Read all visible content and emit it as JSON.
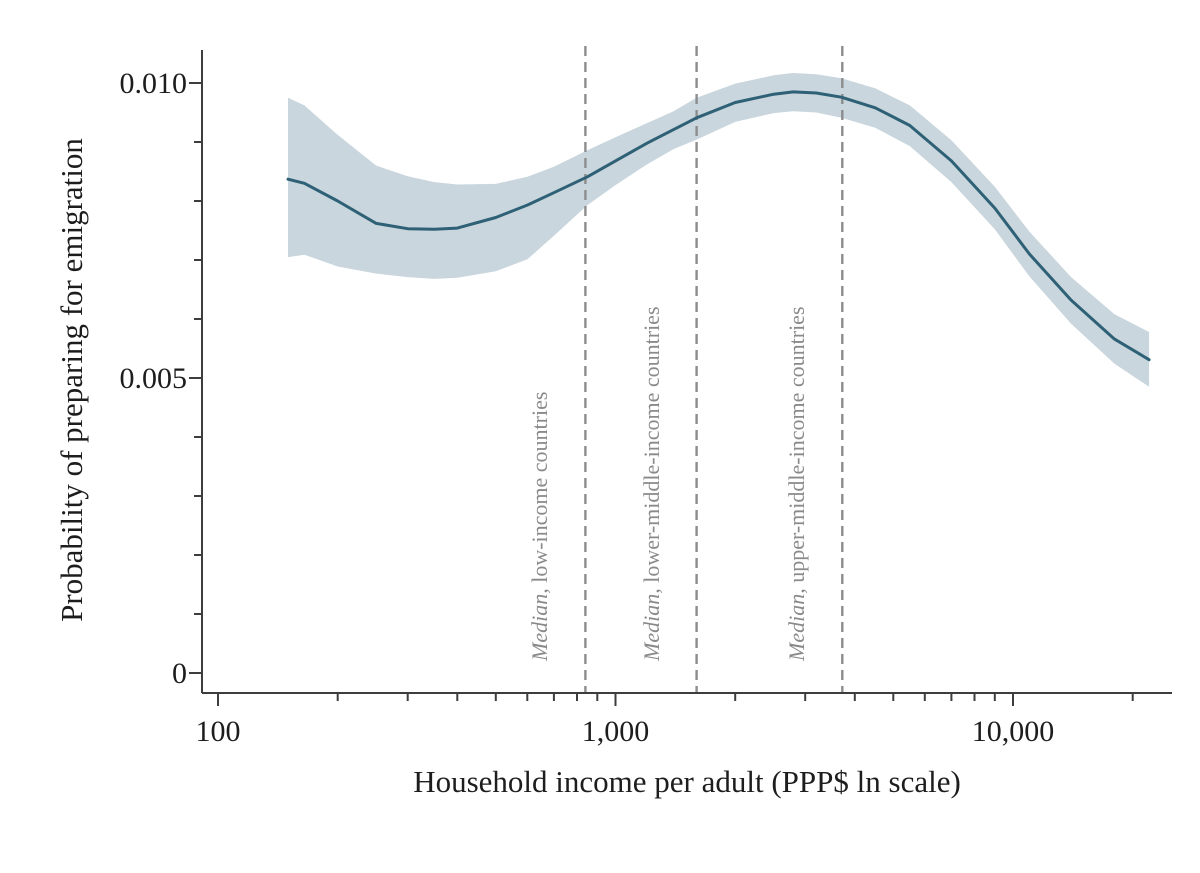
{
  "figure": {
    "background_color": "#ffffff"
  },
  "colors": {
    "trend_line": "#2e6076",
    "confidence_band": "#c9d6dd",
    "axis": "#3d3d3d",
    "tick_text": "#1d1d1d",
    "median_line": "#8d8d8d",
    "median_text": "#8a8a8a"
  },
  "chart_data": {
    "type": "line",
    "title": "",
    "xlabel": "Household income per adult (PPP$ ln scale)",
    "ylabel": "Probability of preparing for emigration",
    "x_scale": "log10",
    "xlim": [
      100,
      25000
    ],
    "ylim": [
      0,
      0.0105
    ],
    "grid": "off",
    "legend": "none",
    "x_major_ticks": [
      {
        "value": 100,
        "label": "100"
      },
      {
        "value": 1000,
        "label": "1,000"
      },
      {
        "value": 10000,
        "label": "10,000"
      }
    ],
    "x_minor_ticks": [
      200,
      300,
      400,
      500,
      600,
      700,
      800,
      900,
      2000,
      3000,
      4000,
      5000,
      6000,
      7000,
      8000,
      9000,
      20000
    ],
    "y_major_ticks": [
      {
        "value": 0,
        "label": "0"
      },
      {
        "value": 0.005,
        "label": "0.005"
      },
      {
        "value": 0.01,
        "label": "0.010"
      }
    ],
    "y_minor_ticks": [
      0.001,
      0.002,
      0.003,
      0.004,
      0.006,
      0.007,
      0.008,
      0.009
    ],
    "x": [
      150,
      165,
      200,
      250,
      300,
      350,
      400,
      500,
      600,
      700,
      850,
      1000,
      1200,
      1400,
      1600,
      2000,
      2500,
      2800,
      3200,
      3700,
      4500,
      5500,
      7000,
      9000,
      11000,
      14000,
      18000,
      22000
    ],
    "series": [
      {
        "name": "Probability of preparing for emigration (smoothed)",
        "role": "line",
        "values": [
          0.00837,
          0.0083,
          0.008,
          0.00762,
          0.00753,
          0.00752,
          0.00754,
          0.00772,
          0.00793,
          0.00814,
          0.00841,
          0.00868,
          0.00898,
          0.00921,
          0.00941,
          0.00967,
          0.00981,
          0.00985,
          0.00983,
          0.00976,
          0.00958,
          0.00928,
          0.00868,
          0.00788,
          0.0071,
          0.00632,
          0.00566,
          0.00531
        ]
      },
      {
        "name": "Confidence band upper",
        "role": "band-upper",
        "values": [
          0.00975,
          0.00962,
          0.00912,
          0.0086,
          0.00842,
          0.00832,
          0.00828,
          0.00829,
          0.00841,
          0.00858,
          0.00886,
          0.00908,
          0.00932,
          0.00952,
          0.00975,
          0.00999,
          0.01013,
          0.01017,
          0.01015,
          0.01008,
          0.00991,
          0.00962,
          0.00903,
          0.00824,
          0.00748,
          0.00671,
          0.00608,
          0.00578
        ]
      },
      {
        "name": "Confidence band lower",
        "role": "band-lower",
        "values": [
          0.00705,
          0.00709,
          0.00689,
          0.00677,
          0.00671,
          0.00668,
          0.0067,
          0.00681,
          0.00701,
          0.00741,
          0.00793,
          0.00827,
          0.00862,
          0.00888,
          0.00904,
          0.00934,
          0.00949,
          0.00952,
          0.0095,
          0.00941,
          0.00924,
          0.00893,
          0.00832,
          0.00752,
          0.00672,
          0.00592,
          0.00524,
          0.00485
        ]
      }
    ],
    "reference_lines": [
      {
        "id": "low-income",
        "income": 840,
        "label": "Median, low-income countries",
        "label_median": "Median,",
        "label_rest": " low-income countries"
      },
      {
        "id": "lower-middle-income",
        "income": 1600,
        "label": "Median, lower-middle-income countries",
        "label_median": "Median,",
        "label_rest": " lower-middle-income countries"
      },
      {
        "id": "upper-middle-income",
        "income": 3720,
        "label": "Median, upper-middle-income countries",
        "label_median": "Median,",
        "label_rest": " upper-middle-income countries"
      }
    ]
  }
}
